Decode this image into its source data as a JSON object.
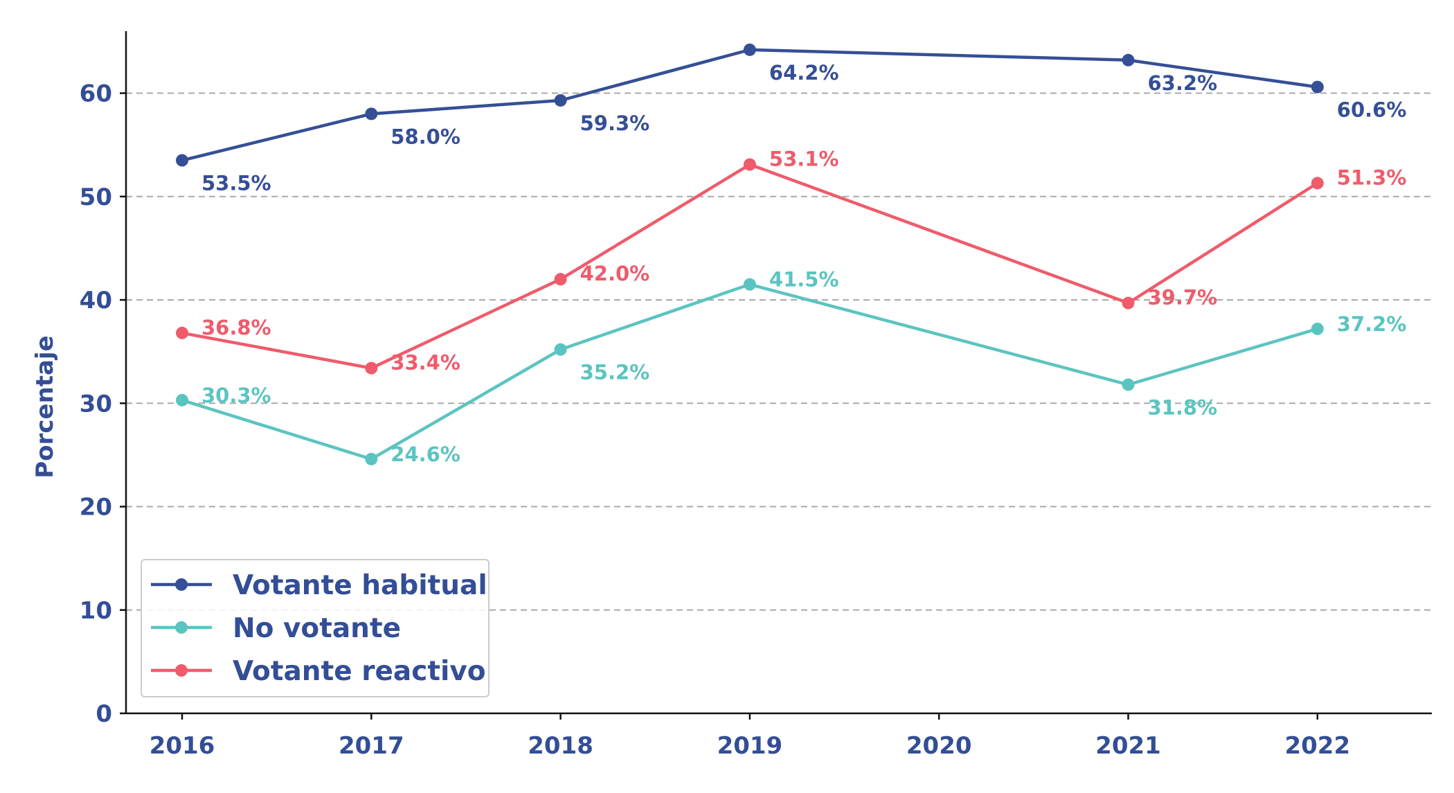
{
  "chart_data": {
    "type": "line",
    "title": "",
    "xlabel": "",
    "ylabel": "Porcentaje",
    "x": [
      "2016",
      "2017",
      "2018",
      "2019",
      "2020",
      "2021",
      "2022"
    ],
    "x_ticks": [
      "2016",
      "2017",
      "2018",
      "2019",
      "2020",
      "2021",
      "2022"
    ],
    "ylim": [
      0,
      66
    ],
    "y_ticks": [
      "0",
      "10",
      "20",
      "30",
      "40",
      "50",
      "60"
    ],
    "grid": "horizontal-dashed",
    "legend_position": "bottom-left",
    "series": [
      {
        "name": "Votante habitual",
        "color": "#354f96",
        "label_placement": "below",
        "points": [
          {
            "x": "2016",
            "y": 53.5,
            "label": "53.5%"
          },
          {
            "x": "2017",
            "y": 58.0,
            "label": "58.0%"
          },
          {
            "x": "2018",
            "y": 59.3,
            "label": "59.3%"
          },
          {
            "x": "2019",
            "y": 64.2,
            "label": "64.2%"
          },
          {
            "x": "2021",
            "y": 63.2,
            "label": "63.2%"
          },
          {
            "x": "2022",
            "y": 60.6,
            "label": "60.6%"
          }
        ]
      },
      {
        "name": "No votante",
        "color": "#5bc4c0",
        "label_placement": "mixed",
        "points": [
          {
            "x": "2016",
            "y": 30.3,
            "label": "30.3%"
          },
          {
            "x": "2017",
            "y": 24.6,
            "label": "24.6%"
          },
          {
            "x": "2018",
            "y": 35.2,
            "label": "35.2%"
          },
          {
            "x": "2019",
            "y": 41.5,
            "label": "41.5%"
          },
          {
            "x": "2021",
            "y": 31.8,
            "label": "31.8%"
          },
          {
            "x": "2022",
            "y": 37.2,
            "label": "37.2%"
          }
        ]
      },
      {
        "name": "Votante reactivo",
        "color": "#ef5b6b",
        "label_placement": "right",
        "points": [
          {
            "x": "2016",
            "y": 36.8,
            "label": "36.8%"
          },
          {
            "x": "2017",
            "y": 33.4,
            "label": "33.4%"
          },
          {
            "x": "2018",
            "y": 42.0,
            "label": "42.0%"
          },
          {
            "x": "2019",
            "y": 53.1,
            "label": "53.1%"
          },
          {
            "x": "2021",
            "y": 39.7,
            "label": "39.7%"
          },
          {
            "x": "2022",
            "y": 51.3,
            "label": "51.3%"
          }
        ]
      }
    ]
  }
}
